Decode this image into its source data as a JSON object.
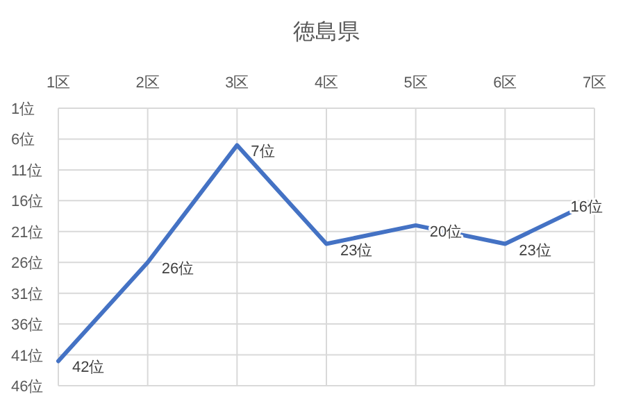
{
  "chart_data": {
    "type": "line",
    "title": "徳島県",
    "categories": [
      "1区",
      "2区",
      "3区",
      "4区",
      "5区",
      "6区",
      "7区"
    ],
    "series": [
      {
        "color": "#4472c4",
        "values": [
          42,
          26,
          7,
          23,
          20,
          23,
          16
        ],
        "value_labels": [
          "42位",
          "26位",
          "7位",
          "23位",
          "20位",
          "23位",
          "16位"
        ]
      }
    ],
    "ylim": [
      46,
      1
    ],
    "yticks": [
      {
        "value": 1,
        "label": "1位"
      },
      {
        "value": 6,
        "label": "6位"
      },
      {
        "value": 11,
        "label": "11位"
      },
      {
        "value": 16,
        "label": "16位"
      },
      {
        "value": 21,
        "label": "21位"
      },
      {
        "value": 26,
        "label": "26位"
      },
      {
        "value": 31,
        "label": "31位"
      },
      {
        "value": 36,
        "label": "36位"
      },
      {
        "value": 41,
        "label": "41位"
      },
      {
        "value": 46,
        "label": "46位"
      }
    ],
    "grid": true,
    "marker": "none",
    "line_style": "solid"
  }
}
